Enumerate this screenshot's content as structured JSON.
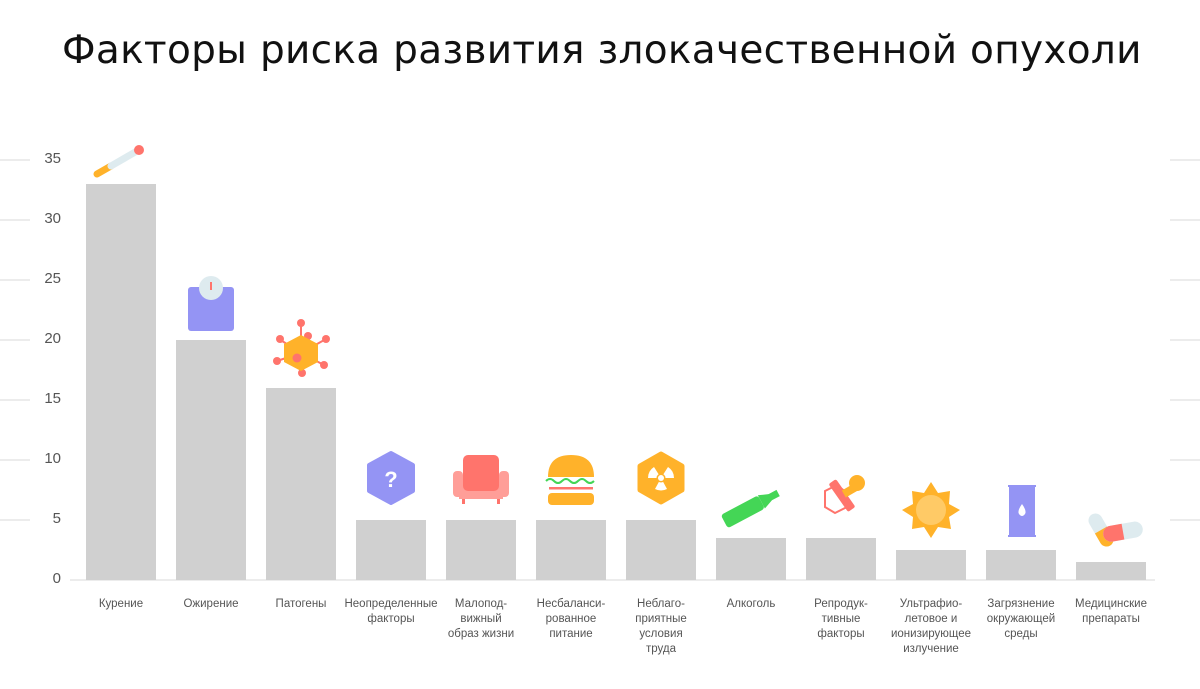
{
  "title": "Факторы риска развития злокачественной опухоли",
  "chart_data": {
    "type": "bar",
    "title": "Факторы риска развития злокачественной опухоли",
    "xlabel": "",
    "ylabel": "",
    "ylim": [
      0,
      35
    ],
    "yticks": [
      0,
      5,
      10,
      15,
      20,
      25,
      30,
      35
    ],
    "grid": true,
    "legend": null,
    "categories": [
      "Курение",
      "Ожирение",
      "Патогены",
      "Неопределенные факторы",
      "Малоподвижный образ жизни",
      "Несбалансированное питание",
      "Неблагоприятные условия труда",
      "Алкоголь",
      "Репродуктивные факторы",
      "Ультрафиолетовое и ионизирующее излучение",
      "Загрязнение окружающей среды",
      "Медицинские препараты"
    ],
    "values": [
      33,
      20,
      16,
      5,
      5,
      5,
      5,
      3.5,
      3.5,
      2.5,
      2.5,
      1.5
    ],
    "bar_color": "#d0d0d0"
  },
  "axis": {
    "ticks": [
      "0",
      "5",
      "10",
      "15",
      "20",
      "25",
      "30",
      "35"
    ]
  },
  "bars": [
    {
      "label": "Курение",
      "icon": "cigarette-icon"
    },
    {
      "label": "Ожирение",
      "icon": "scale-icon"
    },
    {
      "label": "Патогены",
      "icon": "virus-icon"
    },
    {
      "label": "Неопределенные\nфакторы",
      "icon": "question-hexagon-icon"
    },
    {
      "label": "Малопод-\nвижный\nобраз жизни",
      "icon": "armchair-icon"
    },
    {
      "label": "Несбаланси-\nрованное\nпитание",
      "icon": "burger-icon"
    },
    {
      "label": "Неблаго-\nприятные\nусловия\nтруда",
      "icon": "radiation-icon"
    },
    {
      "label": "Алкоголь",
      "icon": "bottle-icon"
    },
    {
      "label": "Репродук-\nтивные\nфакторы",
      "icon": "pacifier-icon"
    },
    {
      "label": "Ультрафио-\nлетовое и\nионизирующее\nизлучение",
      "icon": "sun-icon"
    },
    {
      "label": "Загрязнение\nокружающей\nсреды",
      "icon": "barrel-icon"
    },
    {
      "label": "Медицинские\nпрепараты",
      "icon": "pills-icon"
    }
  ],
  "colors": {
    "orange": "#ffb22a",
    "coral": "#ff746c",
    "purple": "#9494f4",
    "green": "#44d656",
    "lightblue": "#deebef",
    "bar": "#d0d0d0",
    "grid": "#ececec"
  }
}
